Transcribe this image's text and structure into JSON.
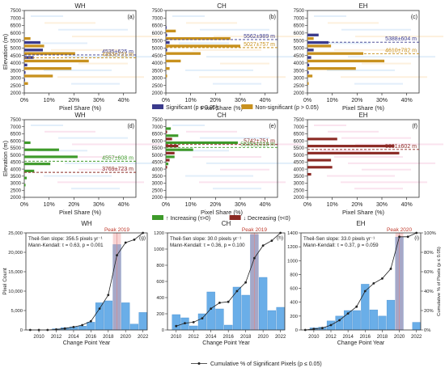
{
  "colors": {
    "significant": "#3a3a8c",
    "nonsignificant": "#c8911e",
    "increasing": "#3e9a2a",
    "decreasing": "#8b2a24",
    "hist_bar": "#6aaee8",
    "peak_bar": "#f0a0a0",
    "band_blue": "#cfe3f7",
    "band_pink": "#f7d0e2",
    "band_orange": "#fbe6c6",
    "peak_text": "#c0392b"
  },
  "chart_data": [
    {
      "type": "bar",
      "panel": "(a)",
      "title": "WH",
      "xlabel": "Pixel Share (%)",
      "ylabel": "Elevation (m)",
      "xlim": [
        0,
        45
      ],
      "ylim": [
        2000,
        7500
      ],
      "x_ticks": [
        "0%",
        "10%",
        "20%",
        "30%",
        "40%"
      ],
      "y_ticks": [
        2000,
        2500,
        3000,
        3500,
        4000,
        4500,
        5000,
        5500,
        6000,
        6500,
        7000,
        7500
      ],
      "bin_centers": [
        2750,
        3250,
        3750,
        4250,
        4750,
        5250,
        5750
      ],
      "series": [
        {
          "name": "Significant (p ≤ 0.05)",
          "values": [
            0.3,
            0.5,
            1.2,
            3.8,
            7.5,
            6.5,
            0
          ]
        },
        {
          "name": "Non-significant (p > 0.05)",
          "values": [
            1.5,
            11.5,
            19.0,
            26.0,
            20.5,
            8.0,
            2.5
          ]
        }
      ],
      "lines": [
        {
          "label": "4535±625 m",
          "value": 4535,
          "series": "Significant (p ≤ 0.05)"
        },
        {
          "label": "4353±721 m",
          "value": 4353,
          "series": "Non-significant (p > 0.05)"
        }
      ]
    },
    {
      "type": "bar",
      "panel": "(b)",
      "title": "CH",
      "xlabel": "Pixel Share (%)",
      "xlim": [
        0,
        45
      ],
      "ylim": [
        2000,
        7500
      ],
      "x_ticks": [
        "0%",
        "10%",
        "20%",
        "30%",
        "40%"
      ],
      "bin_centers": [
        3250,
        3750,
        4250,
        4750,
        5250,
        5750,
        6250
      ],
      "series": [
        {
          "name": "Significant (p ≤ 0.05)",
          "values": [
            0,
            0,
            0,
            0.5,
            1.5,
            0.5,
            0.3
          ]
        },
        {
          "name": "Non-significant (p > 0.05)",
          "values": [
            0.5,
            1.5,
            6.0,
            14.0,
            30.0,
            26.0,
            4.0
          ]
        }
      ],
      "lines": [
        {
          "label": "5562±989 m",
          "value": 5562,
          "series": "Significant (p ≤ 0.05)"
        },
        {
          "label": "5027±757 m",
          "value": 5027,
          "series": "Non-significant (p > 0.05)"
        }
      ]
    },
    {
      "type": "bar",
      "panel": "(c)",
      "title": "EH",
      "xlabel": "Pixel Share (%)",
      "xlim": [
        0,
        45
      ],
      "ylim": [
        2000,
        7500
      ],
      "x_ticks": [
        "0%",
        "10%",
        "20%",
        "30%",
        "40%"
      ],
      "bin_centers": [
        2750,
        3250,
        3750,
        4250,
        4750,
        5250,
        5750
      ],
      "series": [
        {
          "name": "Significant (p ≤ 0.05)",
          "values": [
            0,
            0.5,
            0.7,
            1.5,
            2.5,
            8.5,
            4.5
          ]
        },
        {
          "name": "Non-significant (p > 0.05)",
          "values": [
            0.5,
            2.0,
            19.5,
            31.0,
            22.5,
            9.5,
            2.5
          ]
        }
      ],
      "lines": [
        {
          "label": "5388±604 m",
          "value": 5388,
          "series": "Significant (p ≤ 0.05)"
        },
        {
          "label": "4610±782 m",
          "value": 4610,
          "series": "Non-significant (p > 0.05)"
        }
      ]
    },
    {
      "type": "bar",
      "panel": "(d)",
      "title": "WH",
      "xlabel": "Pixel Share (%)",
      "ylabel": "Elevation (m)",
      "xlim": [
        0,
        45
      ],
      "ylim": [
        2000,
        7500
      ],
      "x_ticks": [
        "0%",
        "10%",
        "20%",
        "30%",
        "40%"
      ],
      "y_ticks": [
        2000,
        2500,
        3000,
        3500,
        4000,
        4500,
        5000,
        5500,
        6000,
        6500,
        7000,
        7500
      ],
      "bin_centers": [
        2750,
        3250,
        3750,
        4250,
        4750,
        5250,
        5750
      ],
      "series": [
        {
          "name": "↑ Increasing (τ>0)",
          "values": [
            0.5,
            1.0,
            4.0,
            10.5,
            21.5,
            14.0,
            2.5
          ]
        },
        {
          "name": "↓ Decreasing (τ<0)",
          "values": [
            0,
            0,
            0,
            0,
            0,
            0,
            0
          ]
        }
      ],
      "lines": [
        {
          "label": "4557±608 m",
          "value": 4557,
          "series": "↑ Increasing (τ>0)"
        },
        {
          "label": "3769±723 m",
          "value": 3769,
          "series": "↓ Decreasing (τ<0)"
        }
      ]
    },
    {
      "type": "bar",
      "panel": "(e)",
      "title": "CH",
      "xlabel": "Pixel Share (%)",
      "xlim": [
        0,
        45
      ],
      "ylim": [
        2000,
        7500
      ],
      "x_ticks": [
        "0%",
        "10%",
        "20%",
        "30%",
        "40%"
      ],
      "bin_centers": [
        4250,
        4750,
        5250,
        5750,
        6250,
        6750
      ],
      "series": [
        {
          "name": "↑ Increasing (τ>0)",
          "values": [
            1.0,
            3.5,
            11.0,
            29.0,
            5.0,
            2.0
          ]
        },
        {
          "name": "↓ Decreasing (τ<0)",
          "values": [
            0.5,
            1.5,
            3.5,
            5.0,
            2.5,
            0.5
          ]
        }
      ],
      "lines": [
        {
          "label": "5742±751 m",
          "value": 5742,
          "series": "↓ Decreasing (τ<0)"
        },
        {
          "label": "5535±1018 m",
          "value": 5535,
          "series": "↑ Increasing (τ>0)"
        }
      ]
    },
    {
      "type": "bar",
      "panel": "(f)",
      "title": "EH",
      "xlabel": "Pixel Share (%)",
      "xlim": [
        0,
        45
      ],
      "ylim": [
        2000,
        7500
      ],
      "x_ticks": [
        "0%",
        "10%",
        "20%",
        "30%",
        "40%"
      ],
      "bin_centers": [
        3750,
        4250,
        4750,
        5250,
        5750,
        6250
      ],
      "series": [
        {
          "name": "↑ Increasing (τ>0)",
          "values": [
            0,
            0,
            0,
            0,
            0,
            0
          ]
        },
        {
          "name": "↓ Decreasing (τ<0)",
          "values": [
            1.5,
            10.0,
            9.5,
            37.0,
            35.0,
            12.0
          ]
        }
      ],
      "lines": [
        {
          "label": "5391±602 m",
          "value": 5391,
          "series": "↓ Decreasing (τ<0)"
        }
      ]
    },
    {
      "type": "bar",
      "panel": "(g)",
      "title": "WH",
      "xlabel": "Change Point Year",
      "ylabel": "Pixel Count",
      "categories": [
        2009,
        2010,
        2011,
        2012,
        2013,
        2014,
        2015,
        2016,
        2017,
        2018,
        2019,
        2020,
        2021,
        2022
      ],
      "values": [
        0,
        0,
        0,
        300,
        600,
        800,
        1000,
        2000,
        7000,
        7500,
        22000,
        7000,
        1500,
        4500
      ],
      "cumulative_pct": [
        0,
        0,
        0,
        0.5,
        1.5,
        3,
        5,
        9,
        22,
        36,
        77,
        90,
        93,
        100
      ],
      "ylim": [
        0,
        25000
      ],
      "y_ticks": [
        "0",
        "5,000",
        "10,000",
        "15,000",
        "20,000",
        "25,000"
      ],
      "peak_year": 2019,
      "peak_label": "Peak 2019",
      "stats": [
        "Theil-Sen slope: 356.5 pixels yr⁻¹",
        "Mann-Kendall: τ = 0.63, p = 0.001"
      ]
    },
    {
      "type": "bar",
      "panel": "(h)",
      "title": "CH",
      "xlabel": "Change Point Year",
      "categories": [
        2010,
        2011,
        2012,
        2013,
        2014,
        2015,
        2016,
        2017,
        2018,
        2019,
        2020,
        2021,
        2022
      ],
      "values": [
        190,
        150,
        50,
        200,
        470,
        260,
        60,
        530,
        430,
        1180,
        650,
        240,
        280
      ],
      "cumulative_pct": [
        4,
        7,
        8,
        12,
        22,
        28,
        29,
        40,
        49,
        74,
        87,
        92,
        100
      ],
      "ylim": [
        0,
        1200
      ],
      "y_ticks": [
        "0",
        "200",
        "400",
        "600",
        "800",
        "1000",
        "1200"
      ],
      "peak_year": 2019,
      "peak_label": "Peak 2019",
      "stats": [
        "Theil-Sen slope: 30.0 pixels yr⁻¹",
        "Mann-Kendall: τ = 0.36, p = 0.100"
      ]
    },
    {
      "type": "bar",
      "panel": "(i)",
      "title": "EH",
      "xlabel": "Change Point Year",
      "ylabel_right": "Cumulative % of Pixels (p ≤ 0.05)",
      "categories": [
        2009,
        2010,
        2011,
        2012,
        2013,
        2014,
        2015,
        2016,
        2017,
        2018,
        2019,
        2020,
        2021,
        2022
      ],
      "values": [
        0,
        30,
        40,
        130,
        200,
        280,
        280,
        660,
        290,
        200,
        430,
        1340,
        0,
        110
      ],
      "cumulative_pct": [
        0,
        1,
        2,
        5,
        10,
        17,
        24,
        40,
        48,
        53,
        63,
        96,
        96,
        100
      ],
      "ylim": [
        0,
        1400
      ],
      "y_ticks": [
        "0",
        "200",
        "400",
        "600",
        "800",
        "1000",
        "1200",
        "1400"
      ],
      "y2_ticks": [
        "0%",
        "20%",
        "40%",
        "60%",
        "80%",
        "100%"
      ],
      "peak_year": 2020,
      "peak_label": "Peak 2020",
      "stats": [
        "Theil-Sen slope: 33.0 pixels yr⁻¹",
        "Mann-Kendall: τ = 0.37, p = 0.059"
      ]
    }
  ],
  "legend_row1": [
    "Significant (p ≤ 0.05)",
    "Non-significant (p > 0.05)"
  ],
  "legend_row2": [
    "↑ Increasing (τ>0)",
    "↓ Decreasing (τ<0)"
  ],
  "legend_row3": "Cumulative % of Significant Pixels (p ≤ 0.05)"
}
